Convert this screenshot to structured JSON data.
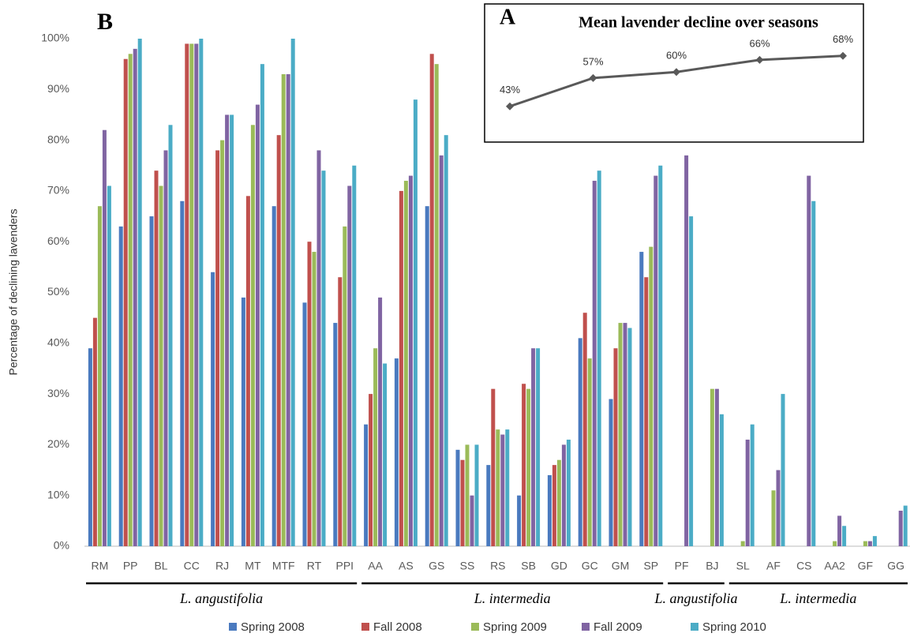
{
  "chart_data": [
    {
      "type": "bar",
      "panel": "B",
      "ylabel": "Percentage of declining lavenders",
      "groups": [
        {
          "name": "L. angustifolia",
          "categories": [
            "RM",
            "PP",
            "BL",
            "CC",
            "RJ",
            "MT",
            "MTF",
            "RT",
            "PPI"
          ]
        },
        {
          "name": "L. intermedia",
          "categories": [
            "AA",
            "AS",
            "GS",
            "SS",
            "RS",
            "SB",
            "GD",
            "GC",
            "GM",
            "SP"
          ]
        },
        {
          "name": "L. angustifolia",
          "categories": [
            "PF",
            "BJ"
          ]
        },
        {
          "name": "L. intermedia",
          "categories": [
            "SL",
            "AF",
            "CS",
            "AA2",
            "GF",
            "GG"
          ]
        }
      ],
      "series": [
        {
          "name": "Spring 2008",
          "color": "#4a7abf",
          "values": [
            39,
            63,
            65,
            68,
            54,
            49,
            67,
            48,
            44,
            24,
            37,
            67,
            19,
            16,
            10,
            14,
            41,
            29,
            58,
            null,
            null,
            null,
            null,
            null,
            null,
            null,
            null
          ]
        },
        {
          "name": "Fall 2008",
          "color": "#c0504d",
          "values": [
            45,
            96,
            74,
            99,
            78,
            69,
            81,
            60,
            53,
            30,
            70,
            97,
            17,
            31,
            32,
            16,
            46,
            39,
            53,
            null,
            null,
            null,
            null,
            null,
            null,
            null,
            null
          ]
        },
        {
          "name": "Spring 2009",
          "color": "#9bbb59",
          "values": [
            67,
            97,
            71,
            99,
            80,
            83,
            93,
            58,
            63,
            39,
            72,
            95,
            20,
            23,
            31,
            17,
            37,
            44,
            59,
            null,
            31,
            1,
            11,
            null,
            1,
            1,
            null
          ]
        },
        {
          "name": "Fall 2009",
          "color": "#8064a2",
          "values": [
            82,
            98,
            78,
            99,
            85,
            87,
            93,
            78,
            71,
            49,
            73,
            77,
            10,
            22,
            39,
            20,
            72,
            44,
            73,
            77,
            31,
            21,
            15,
            73,
            6,
            1,
            7
          ]
        },
        {
          "name": "Spring 2010",
          "color": "#4bacc6",
          "values": [
            71,
            100,
            83,
            100,
            85,
            95,
            100,
            74,
            75,
            36,
            88,
            81,
            20,
            23,
            39,
            21,
            74,
            43,
            75,
            65,
            26,
            24,
            30,
            68,
            4,
            2,
            8
          ]
        }
      ],
      "ylim": [
        0,
        100
      ],
      "yticks": [
        {
          "value": 0,
          "label": "0%"
        },
        {
          "value": 10,
          "label": "10%"
        },
        {
          "value": 20,
          "label": "20%"
        },
        {
          "value": 30,
          "label": "30%"
        },
        {
          "value": 40,
          "label": "40%"
        },
        {
          "value": 50,
          "label": "50%"
        },
        {
          "value": 60,
          "label": "60%"
        },
        {
          "value": 70,
          "label": "70%"
        },
        {
          "value": 80,
          "label": "80%"
        },
        {
          "value": 90,
          "label": "90%"
        },
        {
          "value": 100,
          "label": "100%"
        }
      ],
      "grid": false,
      "legend": "bottom"
    },
    {
      "type": "line",
      "panel": "A",
      "title": "Mean lavender decline over seasons",
      "categories": [
        null,
        null,
        null,
        null,
        null
      ],
      "values": [
        43,
        57,
        60,
        66,
        68
      ],
      "value_labels": [
        "43%",
        "57%",
        "60%",
        "66%",
        "68%"
      ],
      "color": "#595959",
      "ylim": [
        30,
        80
      ]
    }
  ]
}
